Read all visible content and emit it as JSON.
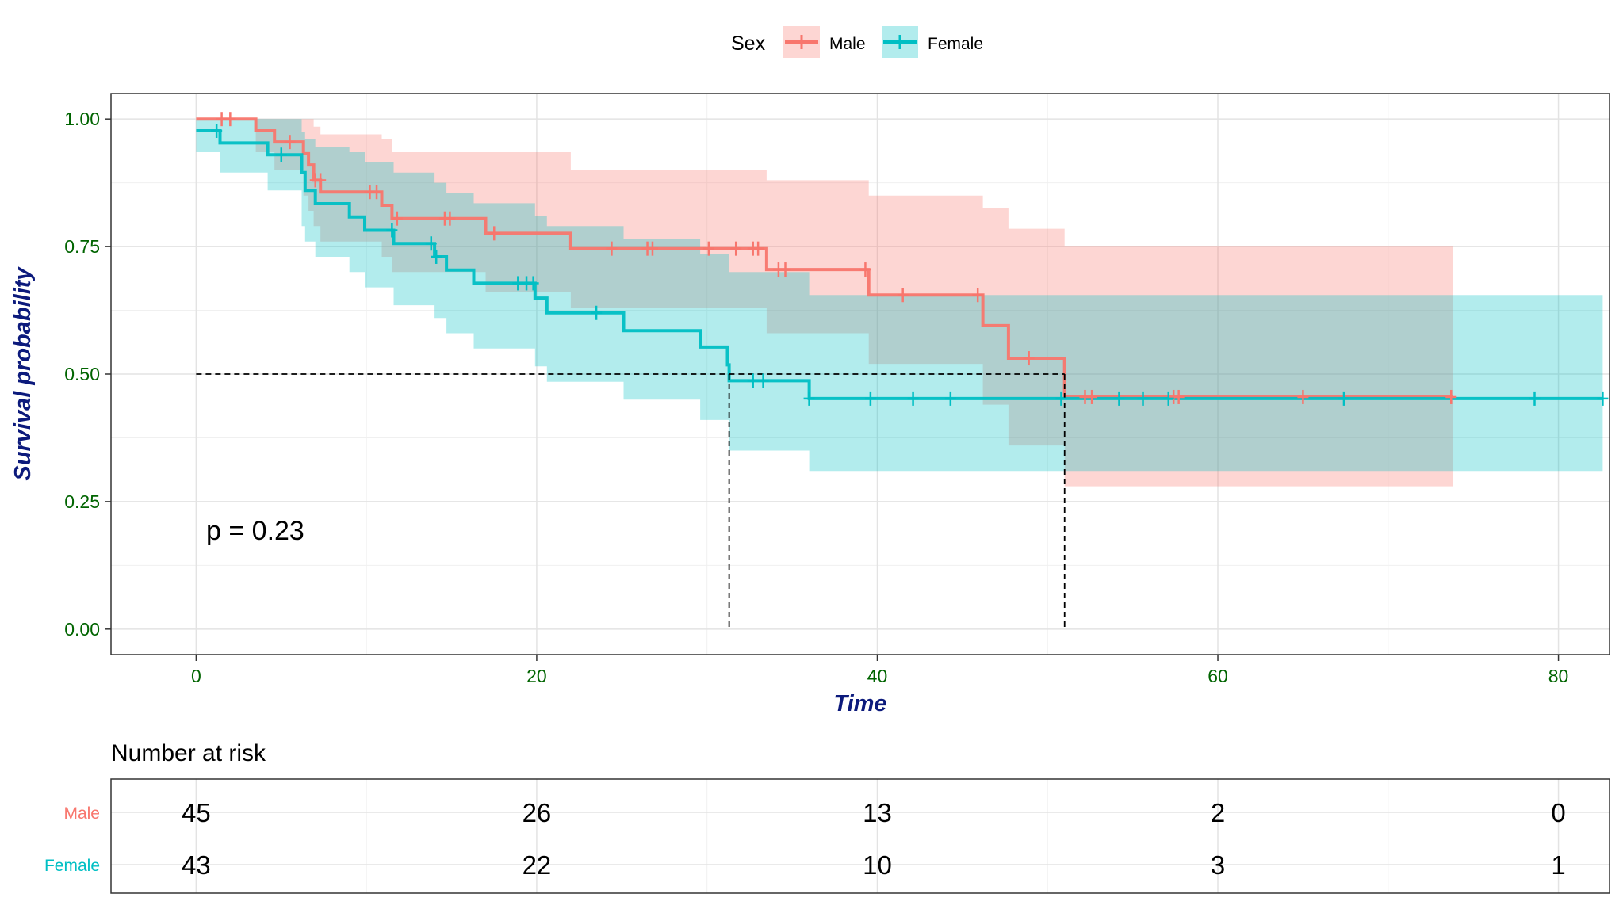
{
  "chart_data": {
    "type": "line",
    "subtype": "kaplan-meier",
    "title": "",
    "xlabel": "Time",
    "ylabel": "Survival probability",
    "xlim": [
      -5,
      83
    ],
    "ylim": [
      -0.05,
      1.05
    ],
    "x_ticks": [
      0,
      20,
      40,
      60,
      80
    ],
    "y_ticks": [
      0.0,
      0.25,
      0.5,
      0.75,
      1.0
    ],
    "y_tick_labels": [
      "0.00",
      "0.25",
      "0.50",
      "0.75",
      "1.00"
    ],
    "grid": true,
    "legend": {
      "title": "Sex",
      "position": "top",
      "entries": [
        "Male",
        "Female"
      ]
    },
    "pvalue_text": "p = 0.23",
    "median_survival": [
      {
        "series": "Female",
        "time": 31.3,
        "y": 0.5
      },
      {
        "series": "Male",
        "time": 51.0,
        "y": 0.5
      }
    ],
    "series": [
      {
        "name": "Male",
        "color": "#F8766D",
        "fill": "rgba(248,118,109,0.30)",
        "steps": [
          [
            0,
            1.0
          ],
          [
            3.5,
            0.977
          ],
          [
            4.6,
            0.955
          ],
          [
            6.3,
            0.932
          ],
          [
            6.6,
            0.91
          ],
          [
            6.9,
            0.88
          ],
          [
            7.3,
            0.857
          ],
          [
            10.9,
            0.831
          ],
          [
            11.5,
            0.805
          ],
          [
            17.0,
            0.776
          ],
          [
            22.0,
            0.746
          ],
          [
            33.5,
            0.705
          ],
          [
            39.5,
            0.655
          ],
          [
            46.2,
            0.595
          ],
          [
            47.7,
            0.531
          ],
          [
            51.0,
            0.455
          ],
          [
            73.8,
            0.455
          ]
        ],
        "upper": [
          [
            0,
            1.0
          ],
          [
            6.3,
            1.0
          ],
          [
            6.9,
            0.985
          ],
          [
            7.3,
            0.97
          ],
          [
            10.9,
            0.96
          ],
          [
            11.5,
            0.935
          ],
          [
            17.0,
            0.935
          ],
          [
            22.0,
            0.9
          ],
          [
            33.5,
            0.88
          ],
          [
            39.5,
            0.85
          ],
          [
            46.2,
            0.825
          ],
          [
            47.7,
            0.785
          ],
          [
            51.0,
            0.75
          ],
          [
            73.8,
            0.75
          ]
        ],
        "lower": [
          [
            0,
            1.0
          ],
          [
            3.5,
            0.935
          ],
          [
            4.6,
            0.9
          ],
          [
            6.3,
            0.85
          ],
          [
            6.6,
            0.82
          ],
          [
            6.9,
            0.79
          ],
          [
            7.3,
            0.76
          ],
          [
            10.9,
            0.73
          ],
          [
            11.5,
            0.7
          ],
          [
            17.0,
            0.66
          ],
          [
            22.0,
            0.63
          ],
          [
            33.5,
            0.58
          ],
          [
            39.5,
            0.52
          ],
          [
            46.2,
            0.44
          ],
          [
            47.7,
            0.36
          ],
          [
            51.0,
            0.28
          ],
          [
            73.8,
            0.28
          ]
        ],
        "censor_times": [
          [
            1.5,
            1.0
          ],
          [
            2.0,
            1.0
          ],
          [
            5.5,
            0.955
          ],
          [
            7.0,
            0.88
          ],
          [
            7.3,
            0.88
          ],
          [
            10.2,
            0.857
          ],
          [
            10.6,
            0.857
          ],
          [
            11.8,
            0.805
          ],
          [
            14.6,
            0.805
          ],
          [
            14.9,
            0.805
          ],
          [
            17.5,
            0.776
          ],
          [
            24.4,
            0.746
          ],
          [
            26.5,
            0.746
          ],
          [
            26.8,
            0.746
          ],
          [
            30.1,
            0.746
          ],
          [
            31.7,
            0.746
          ],
          [
            32.7,
            0.746
          ],
          [
            33.0,
            0.746
          ],
          [
            34.2,
            0.705
          ],
          [
            34.6,
            0.705
          ],
          [
            39.3,
            0.705
          ],
          [
            41.5,
            0.655
          ],
          [
            45.9,
            0.655
          ],
          [
            48.9,
            0.531
          ],
          [
            52.2,
            0.455
          ],
          [
            52.6,
            0.455
          ],
          [
            57.4,
            0.455
          ],
          [
            57.7,
            0.455
          ],
          [
            65.0,
            0.455
          ],
          [
            73.7,
            0.455
          ]
        ]
      },
      {
        "name": "Female",
        "color": "#00BFC4",
        "fill": "rgba(0,191,196,0.30)",
        "steps": [
          [
            0,
            0.977
          ],
          [
            1.4,
            0.953
          ],
          [
            4.2,
            0.93
          ],
          [
            6.2,
            0.895
          ],
          [
            6.4,
            0.86
          ],
          [
            7.0,
            0.834
          ],
          [
            9.0,
            0.808
          ],
          [
            9.9,
            0.782
          ],
          [
            11.6,
            0.756
          ],
          [
            14.0,
            0.73
          ],
          [
            14.7,
            0.704
          ],
          [
            16.3,
            0.678
          ],
          [
            19.9,
            0.649
          ],
          [
            20.6,
            0.62
          ],
          [
            25.1,
            0.585
          ],
          [
            29.6,
            0.553
          ],
          [
            31.2,
            0.518
          ],
          [
            31.3,
            0.487
          ],
          [
            36.0,
            0.452
          ],
          [
            82.6,
            0.452
          ]
        ],
        "upper": [
          [
            0,
            1.0
          ],
          [
            4.2,
            1.0
          ],
          [
            6.2,
            0.975
          ],
          [
            6.4,
            0.96
          ],
          [
            7.0,
            0.945
          ],
          [
            9.0,
            0.935
          ],
          [
            9.9,
            0.915
          ],
          [
            11.6,
            0.895
          ],
          [
            14.0,
            0.875
          ],
          [
            14.7,
            0.855
          ],
          [
            16.3,
            0.835
          ],
          [
            19.9,
            0.81
          ],
          [
            20.6,
            0.79
          ],
          [
            25.1,
            0.765
          ],
          [
            29.6,
            0.735
          ],
          [
            31.3,
            0.7
          ],
          [
            36.0,
            0.655
          ],
          [
            82.6,
            0.655
          ]
        ],
        "lower": [
          [
            0,
            0.935
          ],
          [
            1.4,
            0.895
          ],
          [
            4.2,
            0.86
          ],
          [
            6.2,
            0.79
          ],
          [
            6.4,
            0.76
          ],
          [
            7.0,
            0.73
          ],
          [
            9.0,
            0.7
          ],
          [
            9.9,
            0.67
          ],
          [
            11.6,
            0.635
          ],
          [
            14.0,
            0.61
          ],
          [
            14.7,
            0.58
          ],
          [
            16.3,
            0.55
          ],
          [
            19.9,
            0.515
          ],
          [
            20.6,
            0.485
          ],
          [
            25.1,
            0.45
          ],
          [
            29.6,
            0.41
          ],
          [
            31.3,
            0.35
          ],
          [
            36.0,
            0.31
          ],
          [
            82.6,
            0.31
          ]
        ],
        "censor_times": [
          [
            1.2,
            0.977
          ],
          [
            5.0,
            0.93
          ],
          [
            11.5,
            0.782
          ],
          [
            13.8,
            0.756
          ],
          [
            14.1,
            0.73
          ],
          [
            18.9,
            0.678
          ],
          [
            19.4,
            0.678
          ],
          [
            19.8,
            0.678
          ],
          [
            23.5,
            0.62
          ],
          [
            32.7,
            0.487
          ],
          [
            33.3,
            0.487
          ],
          [
            36.0,
            0.452
          ],
          [
            39.6,
            0.452
          ],
          [
            42.1,
            0.452
          ],
          [
            44.3,
            0.452
          ],
          [
            50.8,
            0.452
          ],
          [
            54.2,
            0.452
          ],
          [
            55.6,
            0.452
          ],
          [
            57.1,
            0.452
          ],
          [
            67.4,
            0.452
          ],
          [
            78.6,
            0.452
          ],
          [
            82.6,
            0.452
          ]
        ]
      }
    ]
  },
  "risk_table": {
    "title": "Number at risk",
    "times": [
      0,
      20,
      40,
      60,
      80
    ],
    "rows": [
      {
        "label": "Male",
        "color": "#F8766D",
        "values": [
          "45",
          "26",
          "13",
          "2",
          "0"
        ]
      },
      {
        "label": "Female",
        "color": "#00BFC4",
        "values": [
          "43",
          "22",
          "10",
          "3",
          "1"
        ]
      }
    ]
  },
  "colors": {
    "axis_tick_text": "#006400",
    "axis_title": "#0C1A7C",
    "median_line": "#000000"
  }
}
